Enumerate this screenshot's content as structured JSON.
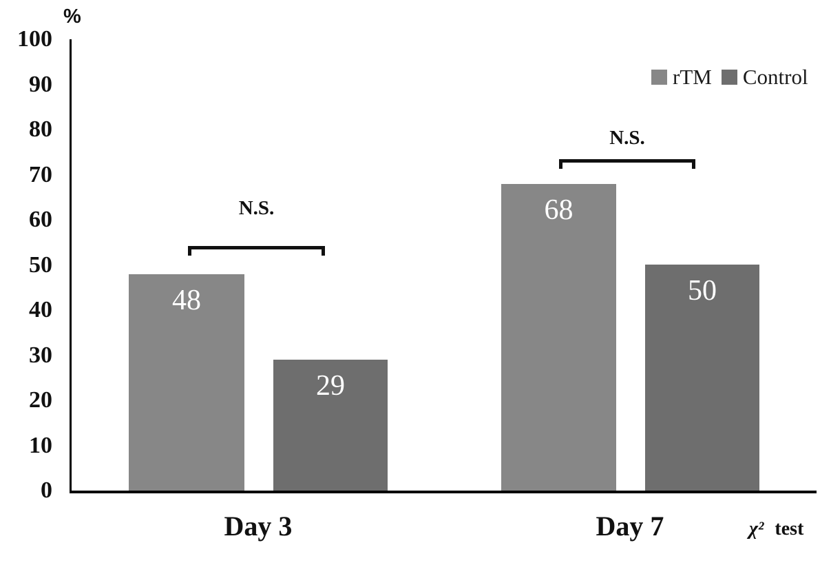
{
  "chart_data": {
    "type": "bar",
    "title": "",
    "ylabel": "%",
    "ylim": [
      0,
      100
    ],
    "yticks": [
      100,
      90,
      80,
      70,
      60,
      50,
      40,
      30,
      20,
      10,
      0
    ],
    "grid": false,
    "legend_position": "top-right",
    "categories": [
      "Day 3",
      "Day 7"
    ],
    "series": [
      {
        "name": "rTM",
        "color": "#878787",
        "values": [
          48,
          68
        ]
      },
      {
        "name": "Control",
        "color": "#6e6e6e",
        "values": [
          29,
          50
        ]
      }
    ],
    "bar_value_label_color": "#ffffff",
    "annotations": [
      {
        "text": "N.S.",
        "category": "Day 3"
      },
      {
        "text": "N.S.",
        "category": "Day 7"
      }
    ],
    "footnote": {
      "symbol": "χ²",
      "label": "test"
    },
    "axis_color": "#000000",
    "text_color": "#1a1a1a"
  }
}
